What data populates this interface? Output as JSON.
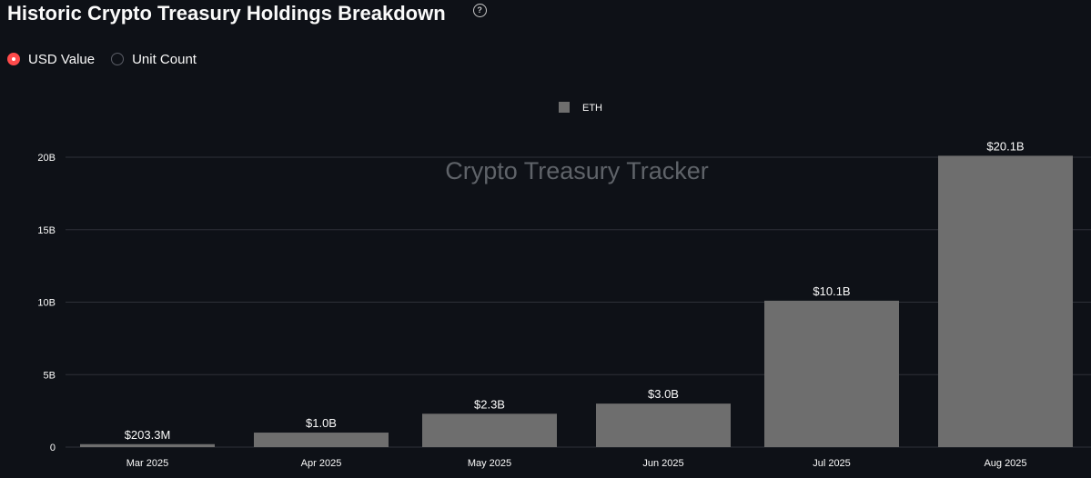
{
  "header": {
    "title": "Historic Crypto Treasury Holdings Breakdown",
    "help_icon": "question-circle-icon"
  },
  "view_toggle": {
    "options": [
      {
        "label": "USD Value",
        "selected": true
      },
      {
        "label": "Unit Count",
        "selected": false
      }
    ],
    "accent_color": "#ff4b4b"
  },
  "chart_data": {
    "type": "bar",
    "categories": [
      "Mar 2025",
      "Apr 2025",
      "May 2025",
      "Jun 2025",
      "Jul 2025",
      "Aug 2025"
    ],
    "series": [
      {
        "name": "ETH",
        "values": [
          203300000,
          1000000000,
          2300000000,
          3000000000,
          10100000000,
          20100000000
        ],
        "data_labels": [
          "$203.3M",
          "$1.0B",
          "$2.3B",
          "$3.0B",
          "$10.1B",
          "$20.1B"
        ],
        "color": "#6e6e6e"
      }
    ],
    "watermark": "Crypto Treasury Tracker",
    "ylim": [
      0,
      20000000000
    ],
    "y_ticks": [
      0,
      5000000000,
      10000000000,
      15000000000,
      20000000000
    ],
    "y_tick_labels": [
      "0",
      "5B",
      "10B",
      "15B",
      "20B"
    ],
    "legend_position": "top-center",
    "grid": true,
    "background_color": "#0e1117",
    "grid_color": "#2e3138"
  }
}
